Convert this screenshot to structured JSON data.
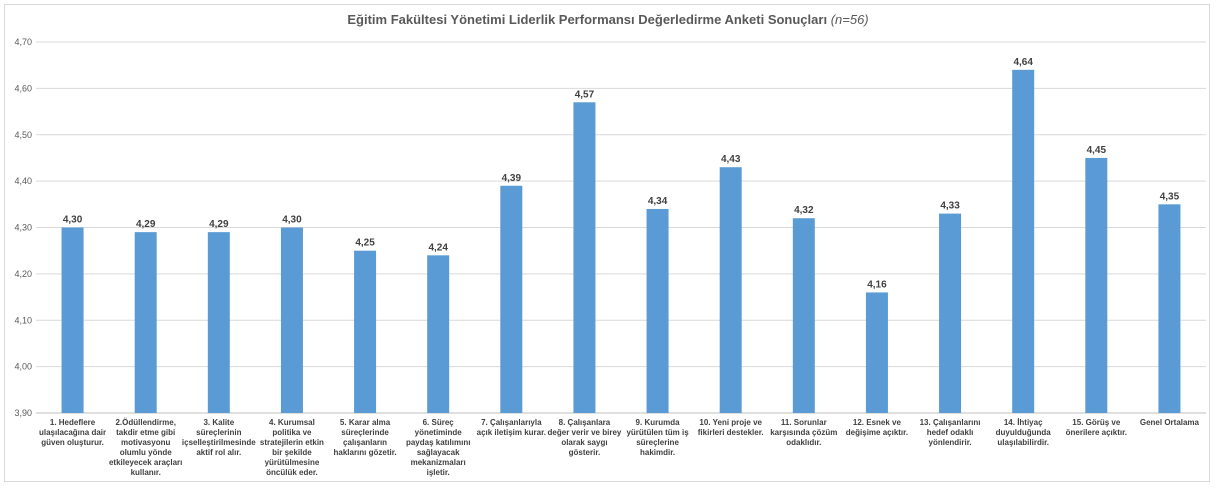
{
  "chart_data": {
    "type": "bar",
    "title": "Eğitim Fakültesi Yönetimi Liderlik Performansı Değerledirme Anketi Sonuçları",
    "title_suffix": "(n=56)",
    "ylim": [
      3.9,
      4.7
    ],
    "yticks": [
      "3,90",
      "4,00",
      "4,10",
      "4,20",
      "4,30",
      "4,40",
      "4,50",
      "4,60",
      "4,70"
    ],
    "ytick_values": [
      3.9,
      4.0,
      4.1,
      4.2,
      4.3,
      4.4,
      4.5,
      4.6,
      4.7
    ],
    "grid": true,
    "bar_color": "#5b9bd5",
    "categories": [
      "1. Hedeflere ulaşılacağına dair güven oluşturur.",
      "2.Ödüllendirme, takdir etme gibi motivasyonu olumlu yönde etkileyecek araçları kullanır.",
      "3. Kalite süreçlerinin içselleştirilmesinde aktif rol alır.",
      "4. Kurumsal politika ve stratejilerin etkin bir şekilde yürütülmesine öncülük eder.",
      "5. Karar alma süreçlerinde çalışanların haklarını gözetir.",
      "6. Süreç yönetiminde paydaş katılımını sağlayacak mekanizmaları işletir.",
      "7. Çalışanlarıyla açık iletişim kurar.",
      "8. Çalışanlara değer verir ve birey olarak saygı gösterir.",
      "9. Kurumda yürütülen tüm iş süreçlerine hakimdir.",
      "10. Yeni proje ve fikirleri destekler.",
      "11. Sorunlar karşısında çözüm odaklıdır.",
      "12. Esnek ve değişime açıktır.",
      "13. Çalışanlarını hedef odaklı yönlendirir.",
      "14. İhtiyaç duyulduğunda ulaşılabilirdir.",
      "15. Görüş ve önerilere açıktır.",
      "Genel Ortalama"
    ],
    "values": [
      4.3,
      4.29,
      4.29,
      4.3,
      4.25,
      4.24,
      4.39,
      4.57,
      4.34,
      4.43,
      4.32,
      4.16,
      4.33,
      4.64,
      4.45,
      4.35
    ],
    "value_labels": [
      "4,30",
      "4,29",
      "4,29",
      "4,30",
      "4,25",
      "4,24",
      "4,39",
      "4,57",
      "4,34",
      "4,43",
      "4,32",
      "4,16",
      "4,33",
      "4,64",
      "4,45",
      "4,35"
    ]
  }
}
